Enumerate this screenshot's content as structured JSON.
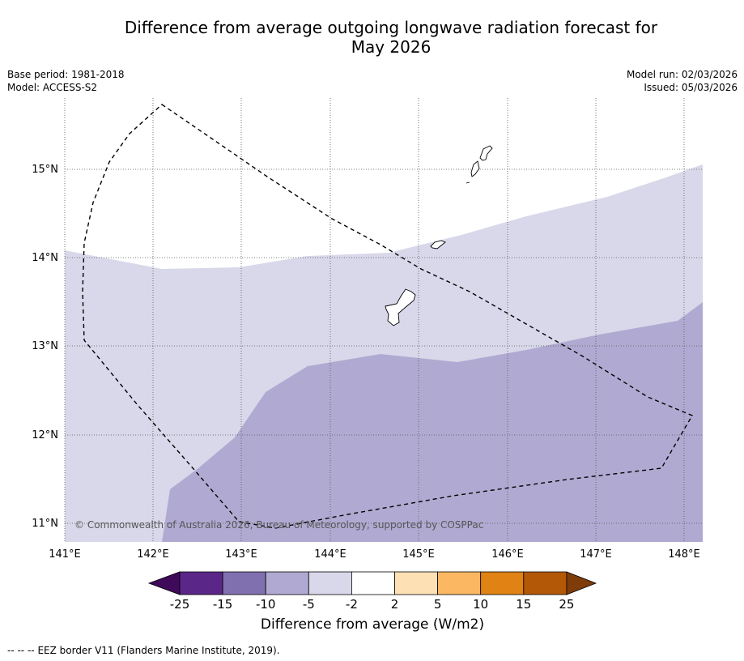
{
  "title_line1": "Difference from average outgoing longwave radiation forecast for",
  "title_line2": "May 2026",
  "meta": {
    "base_period": "Base period: 1981-2018",
    "model": "Model: ACCESS-S2",
    "model_run": "Model run: 02/03/2026",
    "issued": "Issued: 05/03/2026"
  },
  "axes": {
    "lon_labels": [
      "141°E",
      "142°E",
      "143°E",
      "144°E",
      "145°E",
      "146°E",
      "147°E",
      "148°E"
    ],
    "lat_labels": [
      "15°N",
      "14°N",
      "13°N",
      "12°N",
      "11°N"
    ]
  },
  "colorbar": {
    "tick_labels": [
      "-25",
      "-15",
      "-10",
      "-5",
      "-2",
      "2",
      "5",
      "10",
      "15",
      "25"
    ],
    "label": "Difference from average (W/m2)",
    "colors": [
      "#3f0a5a",
      "#5a2688",
      "#8070b0",
      "#b0aad2",
      "#d8d8ea",
      "#ffffff",
      "#fde0b4",
      "#fbb762",
      "#e08214",
      "#b35806",
      "#7f3b08"
    ]
  },
  "copyright": "© Commonwealth of Australia 2026, Bureau of Meteorology, supported by COSPPac",
  "legend": {
    "symbol": "-- -- --",
    "text": "EEZ border V11 (Flanders Marine Institute, 2019)."
  }
}
